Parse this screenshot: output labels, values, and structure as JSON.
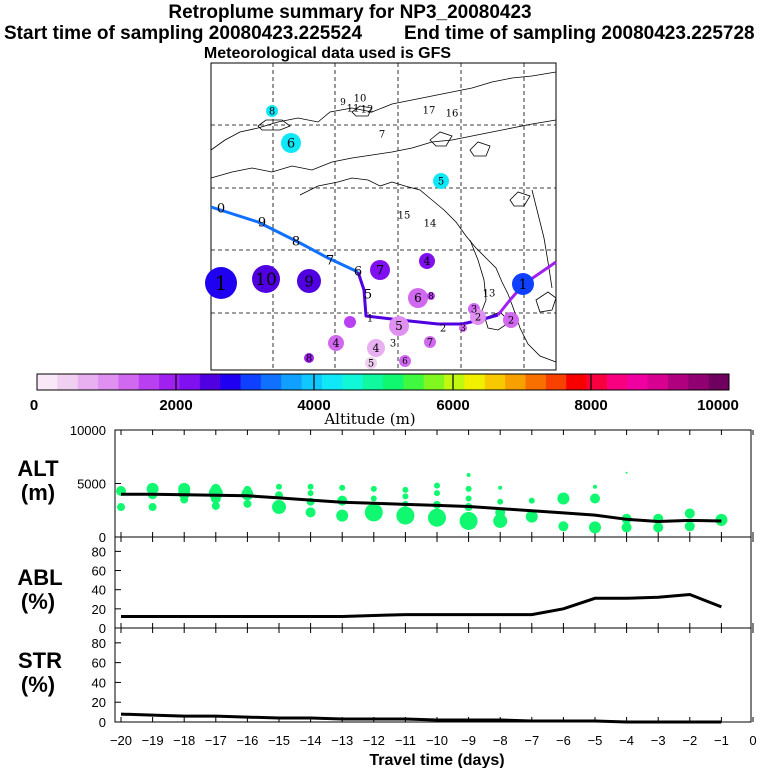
{
  "header": {
    "title": "Retroplume summary for NP3_20080423",
    "start": "Start time of sampling 20080423.225524",
    "end": "End time of sampling 20080423.225728",
    "met": "Meteorological data used is GFS"
  },
  "colorbar": {
    "label": "Altitude (m)",
    "ticks": [
      "0",
      "2000",
      "4000",
      "6000",
      "8000",
      "10000"
    ],
    "colors": [
      "#f8e8f8",
      "#f0d0f0",
      "#e8b0f0",
      "#e090f0",
      "#d068f0",
      "#b840f0",
      "#a020f0",
      "#8010f0",
      "#5000e0",
      "#2000f0",
      "#1040ff",
      "#1070ff",
      "#10a0ff",
      "#10c8ff",
      "#10e8f8",
      "#10f8d8",
      "#10f8a0",
      "#10f870",
      "#40f840",
      "#80f820",
      "#c0f810",
      "#f0f000",
      "#f8c800",
      "#f8a000",
      "#f87000",
      "#f84000",
      "#f80000",
      "#f80040",
      "#f80080",
      "#f000a0",
      "#d80090",
      "#b00080",
      "#900070",
      "#700060"
    ]
  },
  "map": {
    "labels": [
      {
        "t": "8",
        "c": "#10e8f8"
      },
      {
        "t": "9",
        "c": "#10f8d8"
      },
      {
        "t": "10",
        "c": "#10e8f8"
      },
      {
        "t": "11",
        "c": "#10f8d8"
      },
      {
        "t": "12",
        "c": "#10e8f8"
      },
      {
        "t": "17",
        "c": "#10f8d8"
      },
      {
        "t": "16",
        "c": "#10e8f8"
      },
      {
        "t": "6",
        "c": "#10e8f8"
      },
      {
        "t": "7",
        "c": "#10e8f8"
      },
      {
        "t": "5",
        "c": "#10e8f8"
      },
      {
        "t": "15",
        "c": "#10f8d8"
      },
      {
        "t": "14",
        "c": "#10f8d8"
      },
      {
        "t": "0",
        "c": "#10e8f8"
      },
      {
        "t": "9",
        "c": "#10a0ff"
      },
      {
        "t": "8",
        "c": "#1070ff"
      },
      {
        "t": "7",
        "c": "#2000f0"
      },
      {
        "t": "6",
        "c": "#8010f0"
      },
      {
        "t": "7",
        "c": "#8010f0"
      },
      {
        "t": "4",
        "c": "#8010f0"
      },
      {
        "t": "1",
        "c": "#2000f0"
      },
      {
        "t": "10",
        "c": "#5000e0"
      },
      {
        "t": "9",
        "c": "#5000e0"
      },
      {
        "t": "5",
        "c": "#a020f0"
      },
      {
        "t": "6",
        "c": "#d068f0"
      },
      {
        "t": "8",
        "c": "#b840f0"
      },
      {
        "t": "13",
        "c": "#10e8f8"
      },
      {
        "t": "1",
        "c": "#a020f0"
      },
      {
        "t": "3",
        "c": "#d068f0"
      },
      {
        "t": "2",
        "c": "#e090f0"
      },
      {
        "t": "5",
        "c": "#e090f0"
      },
      {
        "t": "2",
        "c": "#d068f0"
      },
      {
        "t": "3",
        "c": "#d068f0"
      },
      {
        "t": "2",
        "c": "#d068f0"
      },
      {
        "t": "4",
        "c": "#d068f0"
      },
      {
        "t": "4",
        "c": "#e8b0f0"
      },
      {
        "t": "3",
        "c": "#f0d0f0"
      },
      {
        "t": "7",
        "c": "#d068f0"
      },
      {
        "t": "6",
        "c": "#d068f0"
      },
      {
        "t": "5",
        "c": "#f0d0f0"
      },
      {
        "t": "8",
        "c": "#a020f0"
      },
      {
        "t": "6",
        "c": "#b840f0"
      },
      {
        "t": "1",
        "c": "#1040ff"
      }
    ]
  },
  "chart_data": [
    {
      "type": "scatter",
      "panel": "ALT",
      "ylabel": "ALT\n(m)",
      "ylabel_line1": "ALT",
      "ylabel_line2": "(m)",
      "ylim": [
        0,
        10000
      ],
      "yticks": [
        "10000",
        "5000",
        "0"
      ],
      "x": [
        -20,
        -19,
        -18,
        -17,
        -16,
        -15,
        -14,
        -13,
        -12,
        -11,
        -10,
        -9,
        -8,
        -7,
        -6,
        -5,
        -4,
        -3,
        -2,
        -1
      ],
      "mean_altitude": [
        4000,
        4000,
        3950,
        3900,
        3850,
        3650,
        3450,
        3250,
        3150,
        3050,
        2950,
        2850,
        2650,
        2450,
        2250,
        2050,
        1650,
        1450,
        1550,
        1500
      ],
      "plume_points": [
        {
          "x": -20,
          "y": 4300,
          "s": 5
        },
        {
          "x": -20,
          "y": 2800,
          "s": 4
        },
        {
          "x": -19,
          "y": 4500,
          "s": 6
        },
        {
          "x": -19,
          "y": 4000,
          "s": 5
        },
        {
          "x": -19,
          "y": 2800,
          "s": 4
        },
        {
          "x": -18,
          "y": 4500,
          "s": 6
        },
        {
          "x": -18,
          "y": 4100,
          "s": 6
        },
        {
          "x": -18,
          "y": 3500,
          "s": 4
        },
        {
          "x": -17,
          "y": 4500,
          "s": 5
        },
        {
          "x": -17,
          "y": 4100,
          "s": 7
        },
        {
          "x": -17,
          "y": 3600,
          "s": 5
        },
        {
          "x": -17,
          "y": 2900,
          "s": 4
        },
        {
          "x": -16,
          "y": 4400,
          "s": 4
        },
        {
          "x": -16,
          "y": 4000,
          "s": 6
        },
        {
          "x": -16,
          "y": 3100,
          "s": 4
        },
        {
          "x": -15,
          "y": 4700,
          "s": 3
        },
        {
          "x": -15,
          "y": 3900,
          "s": 4
        },
        {
          "x": -15,
          "y": 2800,
          "s": 7
        },
        {
          "x": -14,
          "y": 4700,
          "s": 3
        },
        {
          "x": -14,
          "y": 4100,
          "s": 3
        },
        {
          "x": -14,
          "y": 3300,
          "s": 4
        },
        {
          "x": -14,
          "y": 2300,
          "s": 5
        },
        {
          "x": -13,
          "y": 4600,
          "s": 3
        },
        {
          "x": -13,
          "y": 3400,
          "s": 5
        },
        {
          "x": -13,
          "y": 2000,
          "s": 6
        },
        {
          "x": -12,
          "y": 4500,
          "s": 3
        },
        {
          "x": -12,
          "y": 3600,
          "s": 3
        },
        {
          "x": -12,
          "y": 2300,
          "s": 9
        },
        {
          "x": -11,
          "y": 4400,
          "s": 3
        },
        {
          "x": -11,
          "y": 3800,
          "s": 3
        },
        {
          "x": -11,
          "y": 3100,
          "s": 3
        },
        {
          "x": -11,
          "y": 2000,
          "s": 9
        },
        {
          "x": -10,
          "y": 4800,
          "s": 3
        },
        {
          "x": -10,
          "y": 4100,
          "s": 3
        },
        {
          "x": -10,
          "y": 3000,
          "s": 4
        },
        {
          "x": -10,
          "y": 1800,
          "s": 9
        },
        {
          "x": -9,
          "y": 5800,
          "s": 2
        },
        {
          "x": -9,
          "y": 4500,
          "s": 3
        },
        {
          "x": -9,
          "y": 3600,
          "s": 3
        },
        {
          "x": -9,
          "y": 2800,
          "s": 4
        },
        {
          "x": -9,
          "y": 1500,
          "s": 9
        },
        {
          "x": -8,
          "y": 4600,
          "s": 2
        },
        {
          "x": -8,
          "y": 3300,
          "s": 3
        },
        {
          "x": -8,
          "y": 2300,
          "s": 5
        },
        {
          "x": -8,
          "y": 1500,
          "s": 7
        },
        {
          "x": -7,
          "y": 3400,
          "s": 3
        },
        {
          "x": -7,
          "y": 1900,
          "s": 6
        },
        {
          "x": -6,
          "y": 3600,
          "s": 6
        },
        {
          "x": -6,
          "y": 1000,
          "s": 5
        },
        {
          "x": -5,
          "y": 4700,
          "s": 2
        },
        {
          "x": -5,
          "y": 3600,
          "s": 5
        },
        {
          "x": -5,
          "y": 900,
          "s": 6
        },
        {
          "x": -4,
          "y": 6000,
          "s": 1
        },
        {
          "x": -4,
          "y": 1700,
          "s": 5
        },
        {
          "x": -4,
          "y": 900,
          "s": 5
        },
        {
          "x": -3,
          "y": 1700,
          "s": 5
        },
        {
          "x": -3,
          "y": 900,
          "s": 5
        },
        {
          "x": -2,
          "y": 2200,
          "s": 5
        },
        {
          "x": -2,
          "y": 1000,
          "s": 5
        },
        {
          "x": -1,
          "y": 1600,
          "s": 6
        },
        {
          "x": -1,
          "y": 1500,
          "s": 5
        }
      ]
    },
    {
      "type": "line",
      "panel": "ABL",
      "ylabel": "ABL\n(%)",
      "ylabel_line1": "ABL",
      "ylabel_line2": "(%)",
      "ylim": [
        0,
        95
      ],
      "yticks": [
        "80",
        "60",
        "40",
        "20",
        "0"
      ],
      "x": [
        -20,
        -19,
        -18,
        -17,
        -16,
        -15,
        -14,
        -13,
        -12,
        -11,
        -10,
        -9,
        -8,
        -7,
        -6,
        -5,
        -4,
        -3,
        -2,
        -1
      ],
      "values": [
        12,
        12,
        12,
        12,
        12,
        12,
        12,
        12,
        13,
        14,
        14,
        14,
        14,
        14,
        20,
        31,
        31,
        32,
        35,
        22
      ]
    },
    {
      "type": "line",
      "panel": "STR",
      "ylabel": "STR\n(%)",
      "ylabel_line1": "STR",
      "ylabel_line2": "(%)",
      "ylim": [
        0,
        95
      ],
      "yticks": [
        "80",
        "60",
        "40",
        "20",
        "0"
      ],
      "xlabel": "Travel time (days)",
      "xticks": [
        "−20",
        "−19",
        "−18",
        "−17",
        "−16",
        "−15",
        "−14",
        "−13",
        "−12",
        "−11",
        "−10",
        "−9",
        "−8",
        "−7",
        "−6",
        "−5",
        "−4",
        "−3",
        "−2",
        "−1",
        "0"
      ],
      "x": [
        -20,
        -19,
        -18,
        -17,
        -16,
        -15,
        -14,
        -13,
        -12,
        -11,
        -10,
        -9,
        -8,
        -7,
        -6,
        -5,
        -4,
        -3,
        -2,
        -1
      ],
      "values": [
        8,
        7,
        6,
        6,
        5,
        4,
        4,
        3,
        3,
        3,
        2,
        2,
        2,
        1,
        1,
        1,
        0,
        0,
        0,
        0
      ]
    }
  ]
}
